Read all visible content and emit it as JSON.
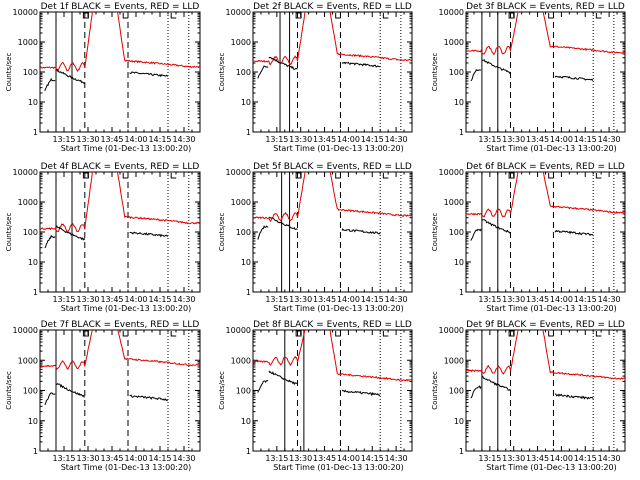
{
  "chart_data": {
    "type": "line",
    "x_axis": {
      "label": "Start Time (01-Dec-13 13:00:20)",
      "tick_labels": [
        "13:15",
        "13:30",
        "13:45",
        "14:00",
        "14:15",
        "14:30"
      ],
      "tick_minutes": [
        15,
        30,
        45,
        60,
        75,
        90
      ],
      "range_minutes": [
        0,
        100
      ]
    },
    "y_axis": {
      "label": "Counts/sec",
      "scale": "log",
      "range": [
        1,
        10000
      ],
      "tick_labels": [
        "1",
        "10",
        "100",
        "1000",
        "10000"
      ]
    },
    "legend_note": "BLACK = Events, RED = LLD",
    "colors": {
      "events": "#000000",
      "lld": "#e00000"
    },
    "markers": {
      "solid_minutes": [
        10,
        20
      ],
      "dashed_minutes": [
        28,
        55
      ],
      "dotted_minutes": [
        80,
        93
      ]
    },
    "panels": [
      {
        "title": "Det 1f BLACK = Events, RED = LLD",
        "lld_level": 150,
        "events_level": 80,
        "lld_pre": 140,
        "events_pre": 55,
        "solid": [
          10,
          20
        ]
      },
      {
        "title": "Det 2f BLACK = Events, RED = LLD",
        "lld_level": 250,
        "events_level": 170,
        "lld_pre": 230,
        "events_pre": 150,
        "solid": [
          17,
          23
        ]
      },
      {
        "title": "Det 3f BLACK = Events, RED = LLD",
        "lld_level": 450,
        "events_level": 60,
        "lld_pre": 500,
        "events_pre": 120,
        "solid": [
          10,
          20
        ]
      },
      {
        "title": "Det 4f BLACK = Events, RED = LLD",
        "lld_level": 200,
        "events_level": 80,
        "lld_pre": 130,
        "events_pre": 70,
        "solid": [
          10,
          20
        ]
      },
      {
        "title": "Det 5f BLACK = Events, RED = LLD",
        "lld_level": 350,
        "events_level": 100,
        "lld_pre": 300,
        "events_pre": 150,
        "solid": [
          18,
          23
        ]
      },
      {
        "title": "Det 6f BLACK = Events, RED = LLD",
        "lld_level": 450,
        "events_level": 90,
        "lld_pre": 400,
        "events_pre": 120,
        "solid": [
          10,
          20
        ]
      },
      {
        "title": "Det 7f BLACK = Events, RED = LLD",
        "lld_level": 700,
        "events_level": 55,
        "lld_pre": 650,
        "events_pre": 80,
        "solid": [
          10,
          20
        ]
      },
      {
        "title": "Det 8f BLACK = Events, RED = LLD",
        "lld_level": 220,
        "events_level": 80,
        "lld_pre": 900,
        "events_pre": 200,
        "solid": [
          20,
          32
        ]
      },
      {
        "title": "Det 9f BLACK = Events, RED = LLD",
        "lld_level": 250,
        "events_level": 60,
        "lld_pre": 450,
        "events_pre": 130,
        "solid": [
          10,
          20
        ]
      }
    ]
  }
}
